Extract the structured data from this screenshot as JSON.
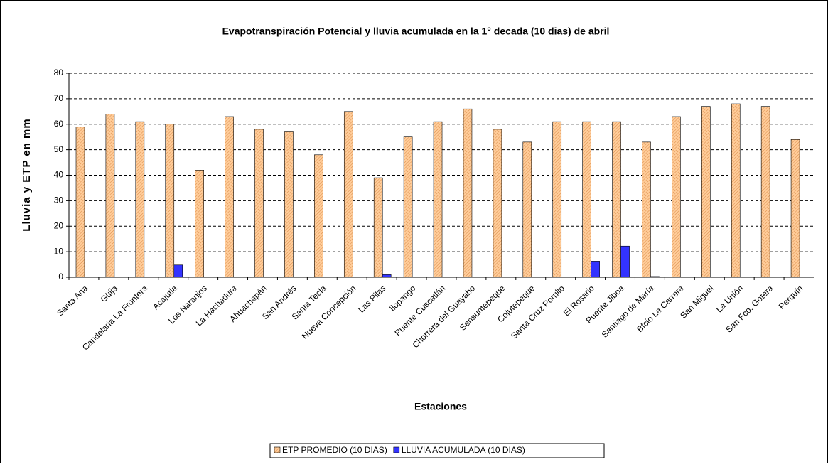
{
  "chart_data": {
    "type": "bar",
    "title": "Evapotranspiración Potencial y lluvia acumulada en la 1° decada (10 dias) de abril",
    "x_label": "Estaciones",
    "y_label": "Lluvia y ETP en mm",
    "categories": [
      "Santa Ana",
      "Güija",
      "Candelaria La Frontera",
      "Acajutla",
      "Los Naranjos",
      "La Hachadura",
      "Ahuachapán",
      "San Andrés",
      "Santa Tecla",
      "Nueva Concepción",
      "Las Pilas",
      "Ilopango",
      "Puente Cuscatlán",
      "Chorrera del Guayabo",
      "Sensuntepeque",
      "Cojutepeque",
      "Santa Cruz Porrillo",
      "El Rosario",
      "Puente Jiboa",
      "Santiago de María",
      "Bfcio La Carrera",
      "San Miguel",
      "La Unión",
      "San Fco. Gotera",
      "Perquín"
    ],
    "series": [
      {
        "name": "ETP PROMEDIO (10 DIAS)",
        "color": "#ffcc99",
        "values": [
          59,
          64,
          61,
          60,
          42,
          63,
          58,
          57,
          48,
          65,
          39,
          55,
          61,
          66,
          58,
          53,
          61,
          61,
          61,
          53,
          63,
          67,
          68,
          67,
          54
        ]
      },
      {
        "name": "LLUVIA ACUMULADA (10 DIAS)",
        "color": "#3333ff",
        "values": [
          0,
          0,
          0,
          4.8,
          0,
          0,
          0,
          0,
          0,
          0,
          1,
          0,
          0,
          0,
          0,
          0,
          0,
          6.3,
          12.2,
          0.3,
          0,
          0,
          0,
          0,
          0
        ]
      }
    ],
    "ylim": [
      0,
      80
    ],
    "yticks": [
      0,
      10,
      20,
      30,
      40,
      50,
      60,
      70,
      80
    ],
    "grid": true,
    "legend": "bottom"
  }
}
